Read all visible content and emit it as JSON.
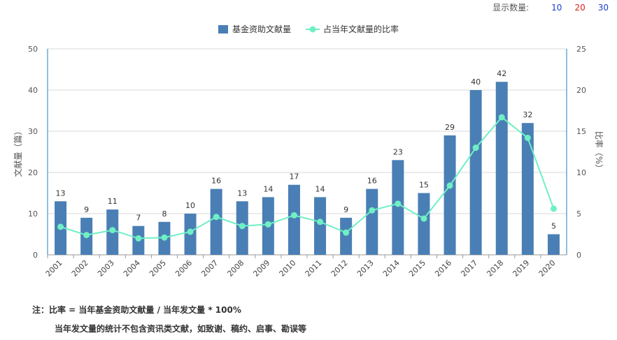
{
  "controls": {
    "display_label": "显示数量:",
    "options": [
      {
        "label": "10",
        "color": "#1a3fd6"
      },
      {
        "label": "20",
        "color": "#e02020"
      },
      {
        "label": "30",
        "color": "#1a3fd6"
      }
    ]
  },
  "notes": {
    "line1": "注：比率 = 当年基金资助文献量 / 当年发文量 * 100%",
    "line2": "当年发文量的统计不包含资讯类文献，如致谢、稿约、启事、勘误等"
  },
  "colors": {
    "bar": "#4a7fb5",
    "line": "#6ff0c4",
    "grid": "#d8d8d8",
    "axis": "#1f7fbf"
  },
  "chart_data": {
    "type": "bar",
    "categories": [
      "2001",
      "2002",
      "2003",
      "2004",
      "2005",
      "2006",
      "2007",
      "2008",
      "2009",
      "2010",
      "2011",
      "2012",
      "2013",
      "2014",
      "2015",
      "2016",
      "2017",
      "2018",
      "2019",
      "2020"
    ],
    "series": [
      {
        "name": "基金资助文献量",
        "type": "bar",
        "axis": "left",
        "values": [
          13,
          9,
          11,
          7,
          8,
          10,
          16,
          13,
          14,
          17,
          14,
          9,
          16,
          23,
          15,
          29,
          40,
          42,
          32,
          5
        ]
      },
      {
        "name": "占当年文献量的比率",
        "type": "line",
        "axis": "right",
        "values": [
          3.4,
          2.4,
          3.0,
          2.0,
          2.1,
          2.8,
          4.6,
          3.5,
          3.7,
          4.8,
          4.0,
          2.7,
          5.4,
          6.2,
          4.4,
          8.4,
          13.0,
          16.7,
          14.2,
          5.6
        ]
      }
    ],
    "ylabel": "文献量（篇）",
    "y2label": "比率（%）",
    "ylim": [
      0,
      50
    ],
    "y2lim": [
      0,
      25
    ],
    "yticks": [
      0,
      10,
      20,
      30,
      40,
      50
    ],
    "y2ticks": [
      0,
      5,
      10,
      15,
      20,
      25
    ],
    "grid": true,
    "legend_position": "top-center"
  }
}
